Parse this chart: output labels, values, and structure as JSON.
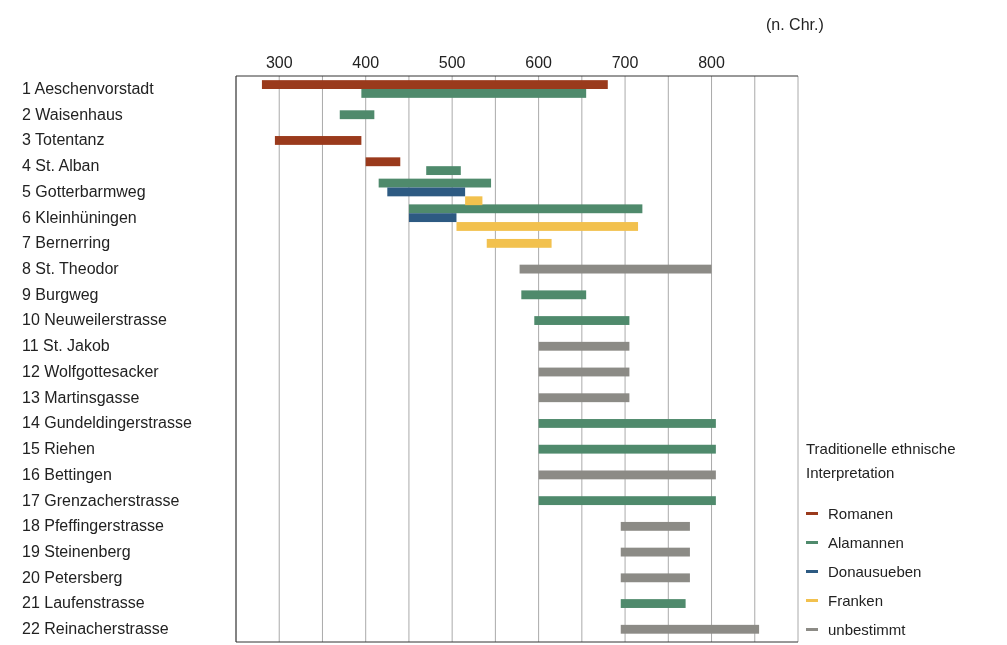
{
  "chart_data": {
    "type": "bar",
    "orientation": "horizontal",
    "xlabel": "(n. Chr.)",
    "legend_title": "Traditionelle ethnische Interpretation",
    "categories": [
      "1 Aeschenvorstadt",
      "2 Waisenhaus",
      "3 Totentanz",
      "4 St. Alban",
      "5 Gotterbarmweg",
      "6 Kleinhüningen",
      "7 Bernerring",
      "8 St. Theodor",
      "9 Burgweg",
      "10 Neuweilerstrasse",
      "11 St. Jakob",
      "12 Wolfgottesacker",
      "13 Martinsgasse",
      "14 Gundeldingerstrasse",
      "15 Riehen",
      "16 Bettingen",
      "17 Grenzacherstrasse",
      "18 Pfeffingerstrasse",
      "19 Steinenberg",
      "20 Petersberg",
      "21 Laufenstrasse",
      "22 Reinacherstrasse"
    ],
    "series": [
      {
        "name": "Romanen",
        "color": "#9a3a1c",
        "base": [
          280,
          null,
          295,
          400,
          null,
          null,
          null,
          null,
          null,
          null,
          null,
          null,
          null,
          null,
          null,
          null,
          null,
          null,
          null,
          null,
          null,
          null
        ],
        "values": [
          400,
          null,
          100,
          40,
          null,
          null,
          null,
          null,
          null,
          null,
          null,
          null,
          null,
          null,
          null,
          null,
          null,
          null,
          null,
          null,
          null,
          null
        ]
      },
      {
        "name": "Alamannen",
        "color": "#4f8a6c",
        "base": [
          395,
          370,
          null,
          470,
          415,
          450,
          null,
          null,
          580,
          595,
          null,
          null,
          null,
          600,
          600,
          null,
          600,
          null,
          null,
          null,
          695,
          null
        ],
        "values": [
          260,
          40,
          null,
          40,
          130,
          270,
          null,
          null,
          75,
          110,
          null,
          null,
          null,
          205,
          205,
          null,
          205,
          null,
          null,
          null,
          75,
          null
        ]
      },
      {
        "name": "Donausueben",
        "color": "#2d5a82",
        "base": [
          null,
          null,
          null,
          null,
          425,
          450,
          null,
          null,
          null,
          null,
          null,
          null,
          null,
          null,
          null,
          null,
          null,
          null,
          null,
          null,
          null,
          null
        ],
        "values": [
          null,
          null,
          null,
          null,
          90,
          55,
          null,
          null,
          null,
          null,
          null,
          null,
          null,
          null,
          null,
          null,
          null,
          null,
          null,
          null,
          null,
          null
        ]
      },
      {
        "name": "Franken",
        "color": "#f2c14e",
        "base": [
          null,
          null,
          null,
          null,
          515,
          505,
          540,
          null,
          null,
          null,
          null,
          null,
          null,
          null,
          null,
          null,
          null,
          null,
          null,
          null,
          null,
          null
        ],
        "values": [
          null,
          null,
          null,
          null,
          20,
          210,
          75,
          null,
          null,
          null,
          null,
          null,
          null,
          null,
          null,
          null,
          null,
          null,
          null,
          null,
          null,
          null
        ]
      },
      {
        "name": "unbestimmt",
        "color": "#8c8b86",
        "base": [
          null,
          null,
          null,
          null,
          null,
          null,
          null,
          578,
          null,
          null,
          600,
          600,
          600,
          null,
          null,
          600,
          null,
          695,
          695,
          695,
          null,
          695
        ],
        "values": [
          null,
          null,
          null,
          null,
          null,
          null,
          null,
          222,
          null,
          null,
          105,
          105,
          105,
          null,
          null,
          205,
          null,
          80,
          80,
          80,
          null,
          160
        ]
      }
    ],
    "xlim": [
      250,
      900
    ],
    "xticks": [
      300,
      {
        "value": 350,
        "label": null
      },
      400,
      {
        "value": 450,
        "label": null
      },
      500,
      {
        "value": 550,
        "label": null
      },
      600,
      {
        "value": 650,
        "label": null
      },
      700,
      {
        "value": 750,
        "label": null
      },
      800,
      {
        "value": 850,
        "label": null
      },
      {
        "value": 900,
        "label": null
      }
    ],
    "grid": "x",
    "legend": "bottom right"
  }
}
